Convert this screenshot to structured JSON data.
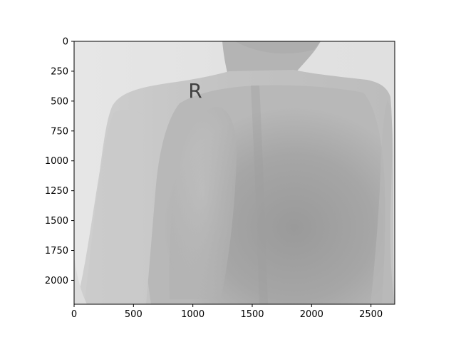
{
  "figure": {
    "image_extent": {
      "width": 2700,
      "height": 2200
    },
    "x_axis": {
      "ticks": [
        0,
        500,
        1000,
        1500,
        2000,
        2500
      ],
      "range": [
        0,
        2700
      ]
    },
    "y_axis": {
      "ticks": [
        0,
        250,
        500,
        750,
        1000,
        1250,
        1500,
        1750,
        2000
      ],
      "range": [
        0,
        2200
      ],
      "inverted": true
    },
    "image_content": "grayscale radiograph",
    "colormap": "gray"
  },
  "marker": {
    "text": "R"
  }
}
